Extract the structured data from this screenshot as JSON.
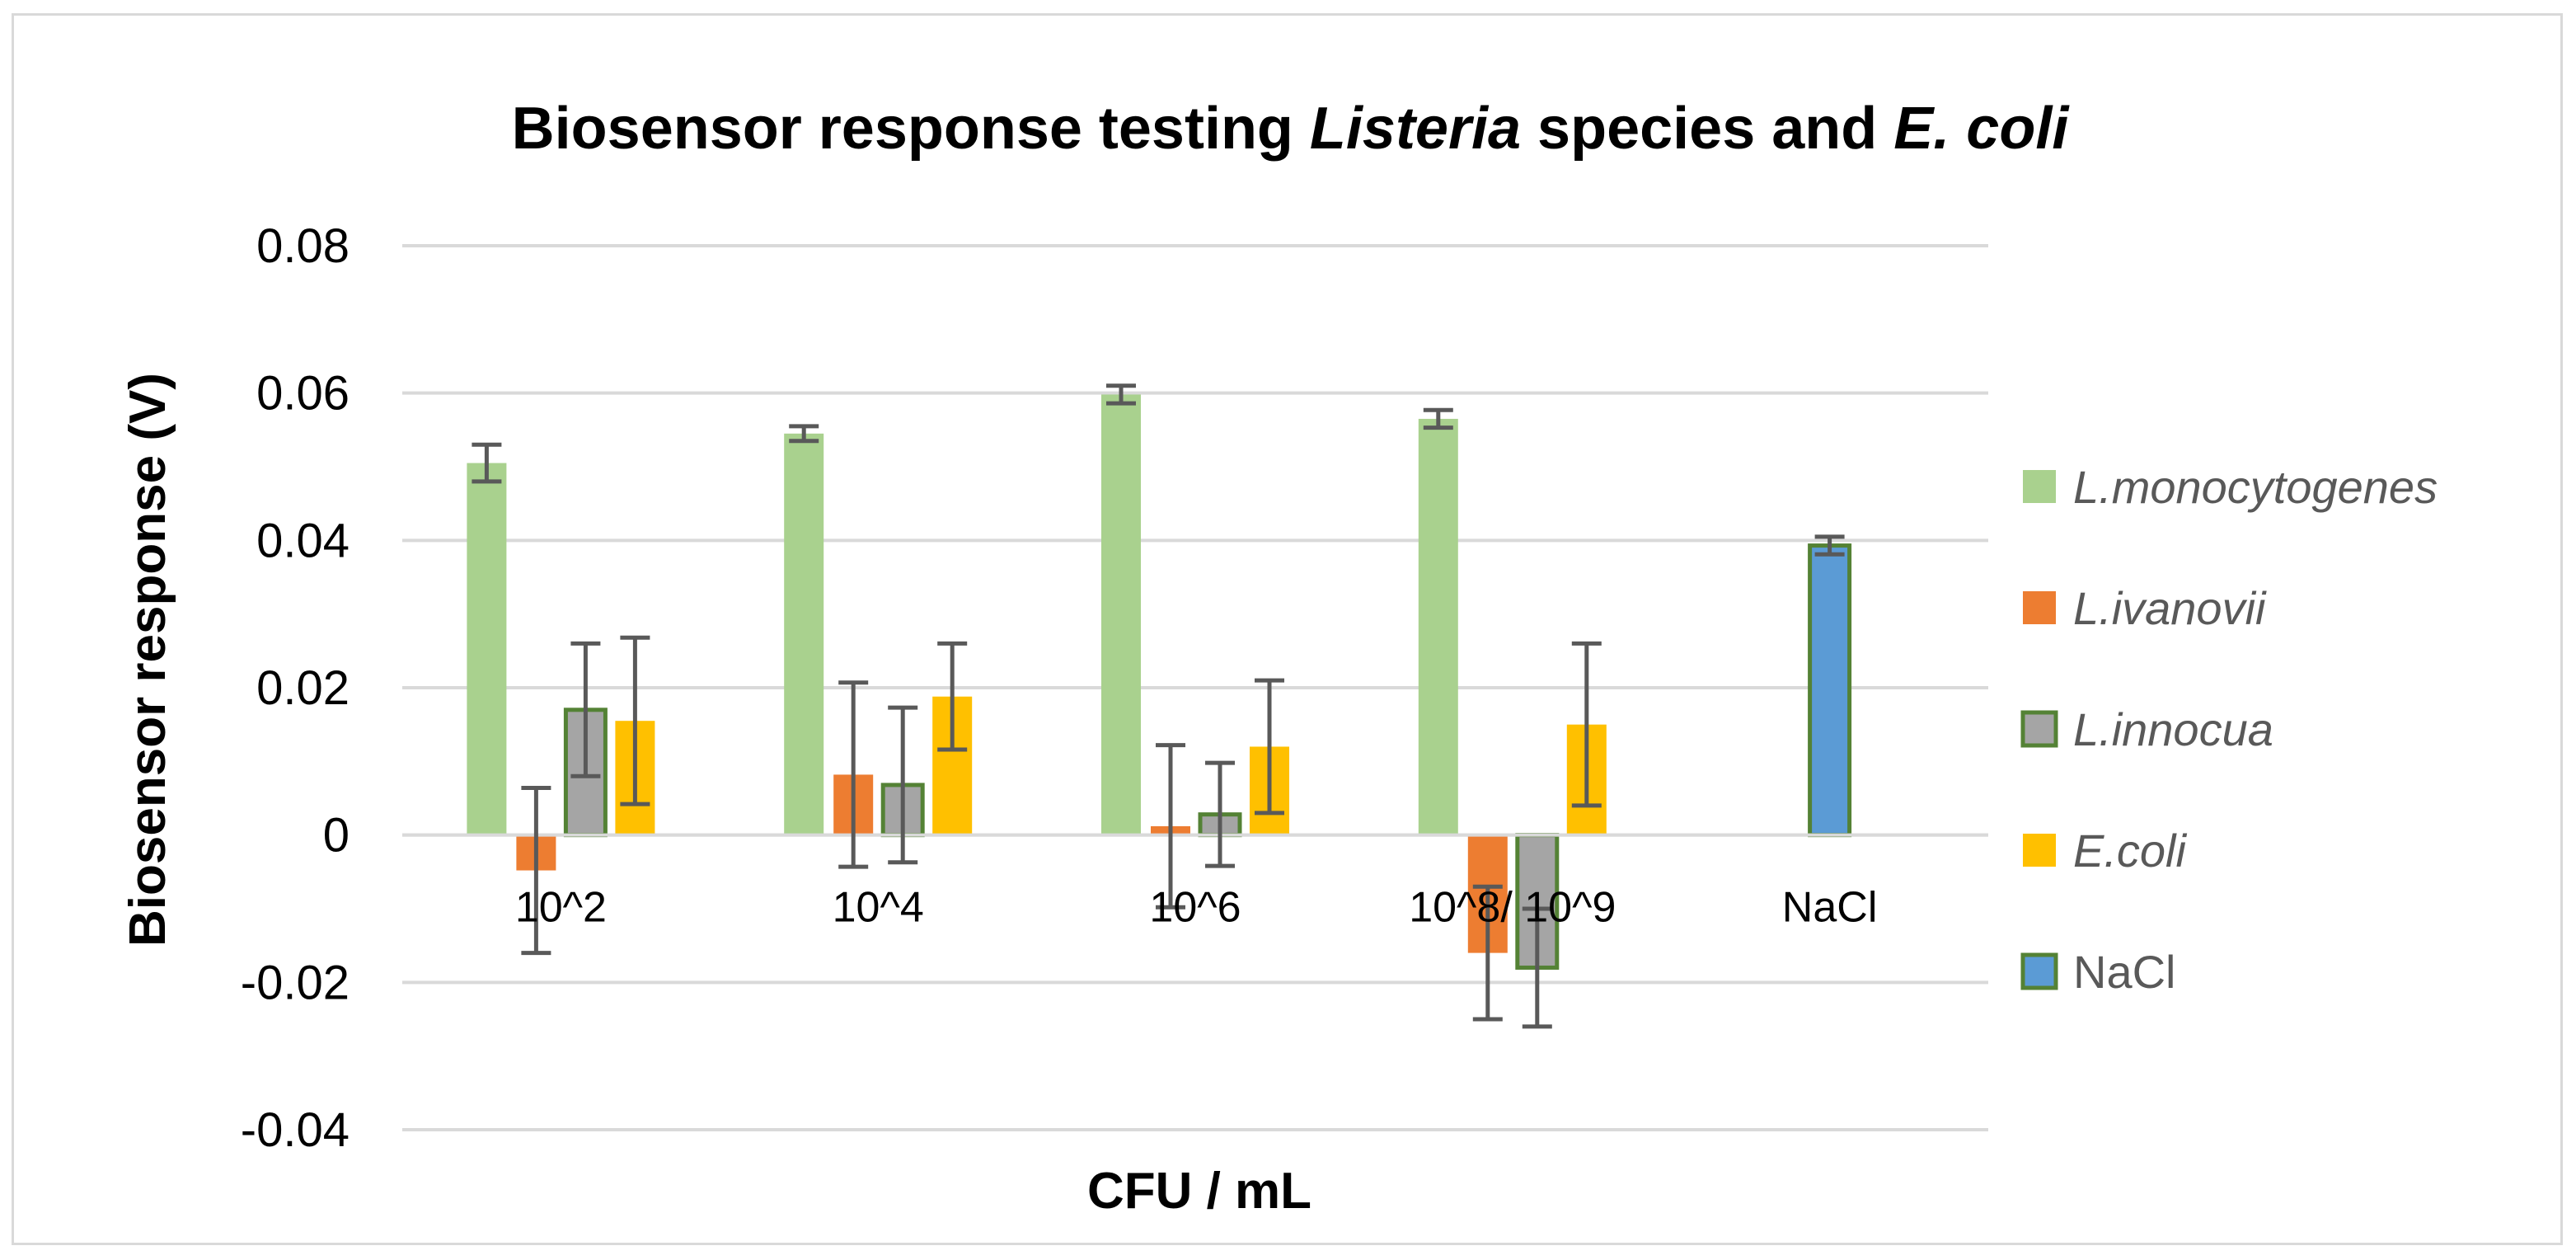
{
  "chart_data": {
    "type": "bar",
    "title_parts": [
      {
        "text": "Biosensor response testing ",
        "italic": false
      },
      {
        "text": "Listeria",
        "italic": true
      },
      {
        "text": " species and ",
        "italic": false
      },
      {
        "text": "E. coli",
        "italic": true
      }
    ],
    "xlabel": "CFU / mL",
    "ylabel": "Biosensor response (V)",
    "ylim": [
      -0.04,
      0.08
    ],
    "yticks": [
      -0.04,
      -0.02,
      0,
      0.02,
      0.04,
      0.06,
      0.08
    ],
    "ytick_labels": [
      "-0.04",
      "-0.02",
      "0",
      "0.02",
      "0.04",
      "0.06",
      "0.08"
    ],
    "grid": true,
    "legend_position": "right",
    "categories": [
      "10^2",
      "10^4",
      "10^6",
      "10^8/ 10^9",
      "NaCl"
    ],
    "series": [
      {
        "name": "L.monocytogenes",
        "italic": true,
        "color": "#a9d18e",
        "border": "",
        "values": [
          0.0505,
          0.0545,
          0.0598,
          0.0565,
          null
        ],
        "errors": [
          0.0025,
          0.001,
          0.0012,
          0.0012,
          null
        ]
      },
      {
        "name": "L.ivanovii",
        "italic": true,
        "color": "#ed7d31",
        "border": "",
        "values": [
          -0.0048,
          0.0082,
          0.0012,
          -0.016,
          null
        ],
        "errors": [
          0.0112,
          0.0125,
          0.011,
          0.009,
          null
        ]
      },
      {
        "name": "L.innocua",
        "italic": true,
        "color": "#a5a5a5",
        "border": "#548235",
        "values": [
          0.017,
          0.0068,
          0.0028,
          -0.018,
          null
        ],
        "errors": [
          0.009,
          0.0105,
          0.007,
          0.008,
          null
        ]
      },
      {
        "name": "E.coli",
        "italic": true,
        "color": "#ffc000",
        "border": "",
        "values": [
          0.0155,
          0.0188,
          0.012,
          0.015,
          null
        ],
        "errors": [
          0.0113,
          0.0072,
          0.009,
          0.011,
          null
        ]
      },
      {
        "name": "NaCl",
        "italic": false,
        "color": "#5b9bd5",
        "border": "#548235",
        "values": [
          null,
          null,
          null,
          null,
          0.0393
        ],
        "errors": [
          null,
          null,
          null,
          null,
          0.0012
        ]
      }
    ]
  }
}
